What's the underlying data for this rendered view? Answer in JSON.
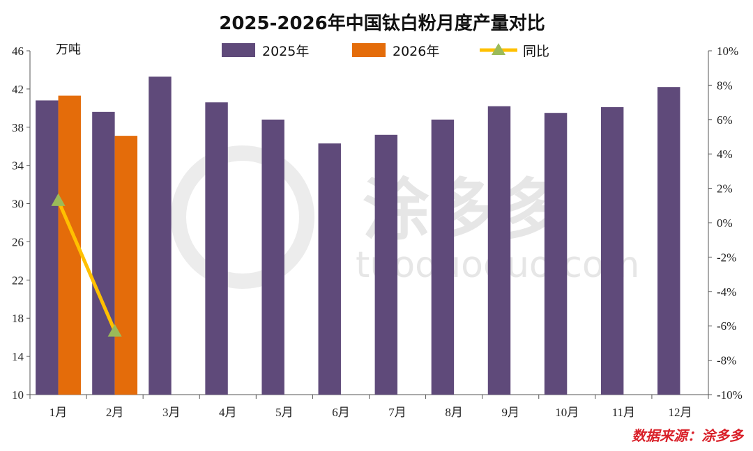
{
  "chart_data": {
    "type": "bar",
    "title": "2025-2026年中国钛白粉月度产量对比",
    "unit_label": "万吨",
    "categories": [
      "1月",
      "2月",
      "3月",
      "4月",
      "5月",
      "6月",
      "7月",
      "8月",
      "9月",
      "10月",
      "11月",
      "12月"
    ],
    "series": [
      {
        "name": "2025年",
        "type": "bar",
        "axis": "left",
        "color": "#5f4a7a",
        "values": [
          40.8,
          39.6,
          43.3,
          40.6,
          38.8,
          36.3,
          37.2,
          38.8,
          40.2,
          39.5,
          40.1,
          42.2
        ]
      },
      {
        "name": "2026年",
        "type": "bar",
        "axis": "left",
        "color": "#e46c0a",
        "values": [
          41.3,
          37.1,
          null,
          null,
          null,
          null,
          null,
          null,
          null,
          null,
          null,
          null
        ]
      },
      {
        "name": "同比",
        "type": "line",
        "axis": "right",
        "color": "#ffc000",
        "marker_color": "#9bbb59",
        "values": [
          1.3,
          -6.3,
          null,
          null,
          null,
          null,
          null,
          null,
          null,
          null,
          null,
          null
        ]
      }
    ],
    "y_left": {
      "min": 10,
      "max": 46,
      "ticks": [
        10,
        14,
        18,
        22,
        26,
        30,
        34,
        38,
        42,
        46
      ]
    },
    "y_right": {
      "min": -10,
      "max": 10,
      "ticks": [
        "10%",
        "8%",
        "6%",
        "4%",
        "2%",
        "0%",
        "-2%",
        "-4%",
        "-6%",
        "-8%",
        "-10%"
      ]
    },
    "legend_position": "top",
    "grid": false
  },
  "source": "数据来源：涂多多",
  "watermark": {
    "brand": "涂多多",
    "domain": "tuoduoduo.com"
  }
}
